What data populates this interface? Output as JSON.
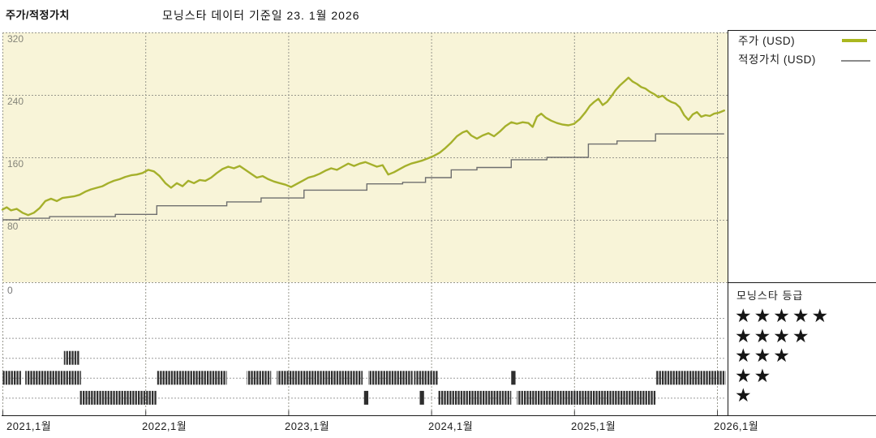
{
  "header": {
    "title": "주가/적정가치",
    "as_of": "모닝스타 데이터 기준일 23. 1월 2026"
  },
  "colors": {
    "price_line": "#a5b02b",
    "fair_value_line": "#6f6f6f",
    "plot_background": "#f8f4d8",
    "grid": "#98988e",
    "rating_marks": "#2e2e2e"
  },
  "chart_data": {
    "type": "line",
    "title": "주가/적정가치",
    "as_of_label": "모닝스타 데이터 기준일 23. 1월 2026",
    "x_axis": {
      "tick_labels": [
        "2021,1월",
        "2022,1월",
        "2023,1월",
        "2024,1월",
        "2025,1월",
        "2026,1월"
      ],
      "tick_years": [
        2021,
        2022,
        2023,
        2024,
        2025,
        2026
      ],
      "range": [
        2021.0,
        2026.08
      ],
      "grid": true
    },
    "y_axis": {
      "tick_labels": [
        "320",
        "240",
        "160",
        "80",
        "0"
      ],
      "tick_values": [
        320,
        240,
        160,
        80,
        0
      ],
      "range": [
        0,
        320
      ],
      "grid": true
    },
    "legend_position": "top-right",
    "series": [
      {
        "name": "주가 (USD)",
        "type": "line",
        "color": "#a5b02b",
        "points": [
          [
            2021.0,
            93
          ],
          [
            2021.03,
            96
          ],
          [
            2021.06,
            92
          ],
          [
            2021.1,
            94
          ],
          [
            2021.14,
            89
          ],
          [
            2021.18,
            86
          ],
          [
            2021.22,
            89
          ],
          [
            2021.26,
            95
          ],
          [
            2021.3,
            104
          ],
          [
            2021.34,
            107
          ],
          [
            2021.38,
            104
          ],
          [
            2021.42,
            108
          ],
          [
            2021.46,
            109
          ],
          [
            2021.5,
            110
          ],
          [
            2021.54,
            112
          ],
          [
            2021.58,
            116
          ],
          [
            2021.62,
            119
          ],
          [
            2021.66,
            121
          ],
          [
            2021.7,
            123
          ],
          [
            2021.74,
            127
          ],
          [
            2021.78,
            130
          ],
          [
            2021.82,
            132
          ],
          [
            2021.86,
            135
          ],
          [
            2021.9,
            137
          ],
          [
            2021.94,
            138
          ],
          [
            2021.98,
            140
          ],
          [
            2022.02,
            144
          ],
          [
            2022.06,
            142
          ],
          [
            2022.1,
            136
          ],
          [
            2022.14,
            127
          ],
          [
            2022.18,
            121
          ],
          [
            2022.22,
            127
          ],
          [
            2022.26,
            123
          ],
          [
            2022.3,
            130
          ],
          [
            2022.34,
            127
          ],
          [
            2022.38,
            131
          ],
          [
            2022.42,
            130
          ],
          [
            2022.46,
            134
          ],
          [
            2022.5,
            140
          ],
          [
            2022.54,
            145
          ],
          [
            2022.58,
            148
          ],
          [
            2022.62,
            146
          ],
          [
            2022.66,
            149
          ],
          [
            2022.7,
            144
          ],
          [
            2022.74,
            139
          ],
          [
            2022.78,
            134
          ],
          [
            2022.82,
            136
          ],
          [
            2022.86,
            132
          ],
          [
            2022.9,
            129
          ],
          [
            2022.94,
            127
          ],
          [
            2022.98,
            125
          ],
          [
            2023.02,
            122
          ],
          [
            2023.06,
            126
          ],
          [
            2023.1,
            130
          ],
          [
            2023.14,
            134
          ],
          [
            2023.18,
            136
          ],
          [
            2023.22,
            139
          ],
          [
            2023.26,
            143
          ],
          [
            2023.3,
            146
          ],
          [
            2023.34,
            144
          ],
          [
            2023.38,
            148
          ],
          [
            2023.42,
            152
          ],
          [
            2023.46,
            149
          ],
          [
            2023.5,
            152
          ],
          [
            2023.54,
            154
          ],
          [
            2023.58,
            151
          ],
          [
            2023.62,
            148
          ],
          [
            2023.66,
            150
          ],
          [
            2023.7,
            138
          ],
          [
            2023.74,
            141
          ],
          [
            2023.78,
            145
          ],
          [
            2023.82,
            149
          ],
          [
            2023.86,
            152
          ],
          [
            2023.9,
            154
          ],
          [
            2023.94,
            156
          ],
          [
            2023.98,
            159
          ],
          [
            2024.02,
            162
          ],
          [
            2024.06,
            166
          ],
          [
            2024.1,
            172
          ],
          [
            2024.14,
            179
          ],
          [
            2024.18,
            187
          ],
          [
            2024.22,
            192
          ],
          [
            2024.25,
            194
          ],
          [
            2024.28,
            188
          ],
          [
            2024.32,
            184
          ],
          [
            2024.36,
            188
          ],
          [
            2024.4,
            191
          ],
          [
            2024.44,
            187
          ],
          [
            2024.48,
            193
          ],
          [
            2024.52,
            200
          ],
          [
            2024.56,
            205
          ],
          [
            2024.6,
            203
          ],
          [
            2024.64,
            205
          ],
          [
            2024.68,
            204
          ],
          [
            2024.71,
            199
          ],
          [
            2024.74,
            212
          ],
          [
            2024.77,
            216
          ],
          [
            2024.8,
            211
          ],
          [
            2024.84,
            207
          ],
          [
            2024.88,
            204
          ],
          [
            2024.92,
            202
          ],
          [
            2024.96,
            201
          ],
          [
            2025.0,
            203
          ],
          [
            2025.04,
            209
          ],
          [
            2025.08,
            218
          ],
          [
            2025.11,
            226
          ],
          [
            2025.14,
            231
          ],
          [
            2025.17,
            235
          ],
          [
            2025.2,
            227
          ],
          [
            2025.23,
            231
          ],
          [
            2025.26,
            238
          ],
          [
            2025.29,
            246
          ],
          [
            2025.32,
            252
          ],
          [
            2025.35,
            257
          ],
          [
            2025.38,
            262
          ],
          [
            2025.41,
            257
          ],
          [
            2025.44,
            254
          ],
          [
            2025.47,
            250
          ],
          [
            2025.5,
            248
          ],
          [
            2025.53,
            244
          ],
          [
            2025.56,
            241
          ],
          [
            2025.59,
            237
          ],
          [
            2025.62,
            239
          ],
          [
            2025.65,
            234
          ],
          [
            2025.68,
            231
          ],
          [
            2025.71,
            229
          ],
          [
            2025.74,
            224
          ],
          [
            2025.77,
            214
          ],
          [
            2025.8,
            208
          ],
          [
            2025.83,
            215
          ],
          [
            2025.86,
            218
          ],
          [
            2025.89,
            212
          ],
          [
            2025.92,
            214
          ],
          [
            2025.95,
            213
          ],
          [
            2025.98,
            216
          ],
          [
            2026.01,
            217
          ],
          [
            2026.05,
            220
          ]
        ]
      },
      {
        "name": "적정가치 (USD)",
        "type": "step",
        "color": "#6f6f6f",
        "points": [
          [
            2021.0,
            80
          ],
          [
            2021.12,
            82
          ],
          [
            2021.33,
            84
          ],
          [
            2021.79,
            87
          ],
          [
            2022.08,
            98
          ],
          [
            2022.57,
            103
          ],
          [
            2022.81,
            108
          ],
          [
            2023.11,
            118
          ],
          [
            2023.55,
            126
          ],
          [
            2023.8,
            128
          ],
          [
            2023.96,
            134
          ],
          [
            2024.14,
            144
          ],
          [
            2024.32,
            147
          ],
          [
            2024.56,
            157
          ],
          [
            2024.81,
            160
          ],
          [
            2025.1,
            177
          ],
          [
            2025.3,
            181
          ],
          [
            2025.57,
            190
          ],
          [
            2026.05,
            190
          ]
        ]
      }
    ],
    "ratings_timeline": {
      "title": "모닝스타 등급",
      "star_rows": [
        5,
        4,
        3,
        2,
        1
      ],
      "star_row_labels": [
        "★★★★★",
        "★★★★",
        "★★★",
        "★★",
        "★"
      ],
      "marks": [
        {
          "stars": 3,
          "start": 2021.43,
          "end": 2021.54
        },
        {
          "stars": 2,
          "start": 2021.0,
          "end": 2021.13
        },
        {
          "stars": 2,
          "start": 2021.16,
          "end": 2021.55
        },
        {
          "stars": 2,
          "start": 2022.08,
          "end": 2022.57
        },
        {
          "stars": 2,
          "start": 2022.71,
          "end": 2022.88
        },
        {
          "stars": 2,
          "start": 2022.92,
          "end": 2023.52
        },
        {
          "stars": 2,
          "start": 2023.56,
          "end": 2023.87
        },
        {
          "stars": 2,
          "start": 2023.88,
          "end": 2024.05
        },
        {
          "stars": 2,
          "start": 2024.56,
          "end": 2024.59
        },
        {
          "stars": 2,
          "start": 2025.57,
          "end": 2026.06
        },
        {
          "stars": 1,
          "start": 2021.54,
          "end": 2022.08
        },
        {
          "stars": 1,
          "start": 2023.53,
          "end": 2023.56
        },
        {
          "stars": 1,
          "start": 2023.92,
          "end": 2023.95
        },
        {
          "stars": 1,
          "start": 2024.05,
          "end": 2024.56
        },
        {
          "stars": 1,
          "start": 2024.6,
          "end": 2025.57
        }
      ]
    }
  }
}
